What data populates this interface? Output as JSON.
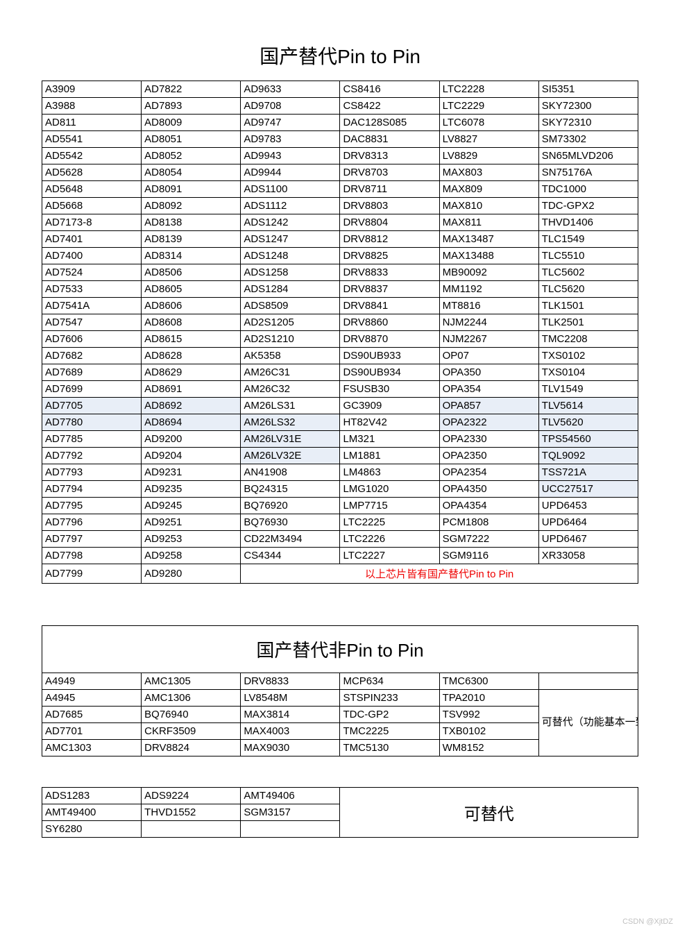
{
  "table1": {
    "title": "国产替代Pin to Pin",
    "rows": [
      [
        "A3909",
        "AD7822",
        "AD9633",
        "CS8416",
        "LTC2228",
        "SI5351"
      ],
      [
        "A3988",
        "AD7893",
        "AD9708",
        "CS8422",
        "LTC2229",
        "SKY72300"
      ],
      [
        "AD811",
        "AD8009",
        "AD9747",
        "DAC128S085",
        "LTC6078",
        "SKY72310"
      ],
      [
        "AD5541",
        "AD8051",
        "AD9783",
        "DAC8831",
        "LV8827",
        "SM73302"
      ],
      [
        "AD5542",
        "AD8052",
        "AD9943",
        "DRV8313",
        "LV8829",
        "SN65MLVD206"
      ],
      [
        "AD5628",
        "AD8054",
        "AD9944",
        "DRV8703",
        "MAX803",
        "SN75176A"
      ],
      [
        "AD5648",
        "AD8091",
        "ADS1100",
        "DRV8711",
        "MAX809",
        "TDC1000"
      ],
      [
        "AD5668",
        "AD8092",
        "ADS1112",
        "DRV8803",
        "MAX810",
        "TDC-GPX2"
      ],
      [
        "AD7173-8",
        "AD8138",
        "ADS1242",
        "DRV8804",
        "MAX811",
        "THVD1406"
      ],
      [
        "AD7401",
        "AD8139",
        "ADS1247",
        "DRV8812",
        "MAX13487",
        "TLC1549"
      ],
      [
        "AD7400",
        "AD8314",
        "ADS1248",
        "DRV8825",
        "MAX13488",
        "TLC5510"
      ],
      [
        "AD7524",
        "AD8506",
        "ADS1258",
        "DRV8833",
        "MB90092",
        "TLC5602"
      ],
      [
        "AD7533",
        "AD8605",
        "ADS1284",
        "DRV8837",
        "MM1192",
        "TLC5620"
      ],
      [
        "AD7541A",
        "AD8606",
        "ADS8509",
        "DRV8841",
        "MT8816",
        "TLK1501"
      ],
      [
        "AD7547",
        "AD8608",
        "AD2S1205",
        "DRV8860",
        "NJM2244",
        "TLK2501"
      ],
      [
        "AD7606",
        "AD8615",
        "AD2S1210",
        "DRV8870",
        "NJM2267",
        "TMC2208"
      ],
      [
        "AD7682",
        "AD8628",
        "AK5358",
        "DS90UB933",
        "OP07",
        "TXS0102"
      ],
      [
        "AD7689",
        "AD8629",
        "AM26C31",
        "DS90UB934",
        "OPA350",
        "TXS0104"
      ],
      [
        "AD7699",
        "AD8691",
        "AM26C32",
        "FSUSB30",
        "OPA354",
        "TLV1549"
      ],
      [
        "AD7705",
        "AD8692",
        "AM26LS31",
        "GC3909",
        "OPA857",
        "TLV5614"
      ],
      [
        "AD7780",
        "AD8694",
        "AM26LS32",
        "HT82V42",
        "OPA2322",
        "TLV5620"
      ],
      [
        "AD7785",
        "AD9200",
        "AM26LV31E",
        "LM321",
        "OPA2330",
        "TPS54560"
      ],
      [
        "AD7792",
        "AD9204",
        "AM26LV32E",
        "LM1881",
        "OPA2350",
        "TQL9092"
      ],
      [
        "AD7793",
        "AD9231",
        "AN41908",
        "LM4863",
        "OPA2354",
        "TSS721A"
      ],
      [
        "AD7794",
        "AD9235",
        "BQ24315",
        "LMG1020",
        "OPA4350",
        "UCC27517"
      ],
      [
        "AD7795",
        "AD9245",
        "BQ76920",
        "LMP7715",
        "OPA4354",
        "UPD6453"
      ],
      [
        "AD7796",
        "AD9251",
        "BQ76930",
        "LTC2225",
        "PCM1808",
        "UPD6464"
      ],
      [
        "AD7797",
        "AD9253",
        "CD22M3494",
        "LTC2226",
        "SGM7222",
        "UPD6467"
      ],
      [
        "AD7798",
        "AD9258",
        "CS4344",
        "LTC2227",
        "SGM9116",
        "XR33058"
      ]
    ],
    "lastrow": [
      "AD7799",
      "AD9280"
    ],
    "footnote": "以上芯片皆有国产替代Pin to Pin",
    "highlights": {
      "19": [
        0,
        1,
        4,
        5
      ],
      "20": [
        0,
        1,
        2,
        4,
        5
      ],
      "21": [
        2,
        5
      ],
      "22": [
        2,
        5
      ],
      "23": [
        5
      ],
      "24": [
        5
      ]
    }
  },
  "table2": {
    "title": "国产替代非Pin to Pin",
    "rows": [
      [
        "A4949",
        "AMC1305",
        "DRV8833",
        "MCP634",
        "TMC6300"
      ],
      [
        "A4945",
        "AMC1306",
        "LV8548M",
        "STSPIN233",
        "TPA2010"
      ],
      [
        "AD7685",
        "BQ76940",
        "MAX3814",
        "TDC-GP2",
        "TSV992"
      ],
      [
        "AD7701",
        "CKRF3509",
        "MAX4003",
        "TMC2225",
        "TXB0102"
      ],
      [
        "AMC1303",
        "DRV8824",
        "MAX9030",
        "TMC5130",
        "WM8152"
      ]
    ],
    "note": "可替代（功能基本一致，管脚不兼容）"
  },
  "table3": {
    "rows": [
      [
        "ADS1283",
        "ADS9224",
        "AMT49406"
      ],
      [
        "AMT49400",
        "THVD1552",
        "SGM3157"
      ],
      [
        "SY6280",
        "",
        ""
      ]
    ],
    "note": "可替代"
  },
  "watermark": "CSDN @XjtDZ"
}
